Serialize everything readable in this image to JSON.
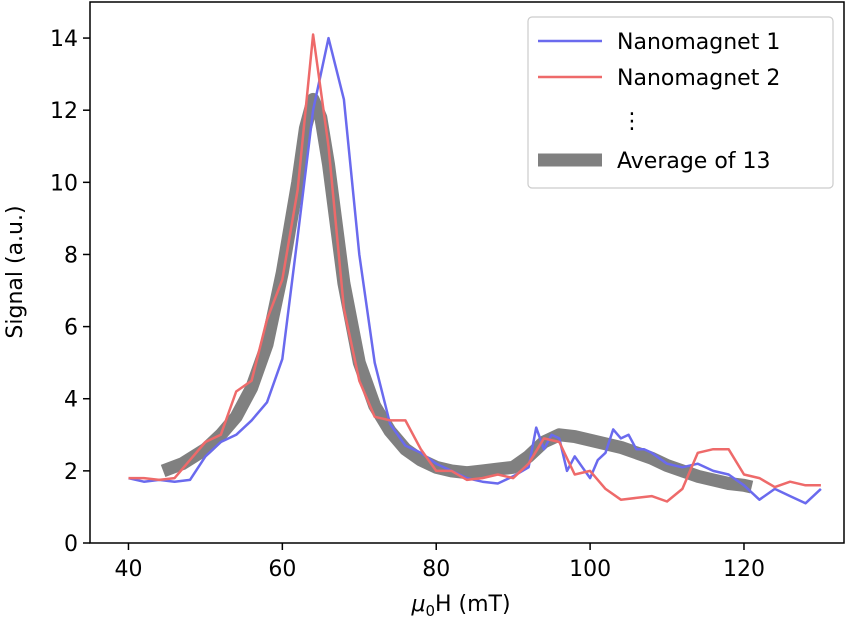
{
  "chart_data": {
    "type": "line",
    "xlabel_symbol": "μ",
    "xlabel_sub": "0",
    "xlabel_rest": "H (mT)",
    "ylabel": "Signal (a.u.)",
    "xlim": [
      35,
      133
    ],
    "ylim": [
      0,
      15
    ],
    "xticks": [
      40,
      60,
      80,
      100,
      120
    ],
    "yticks": [
      0,
      2,
      4,
      6,
      8,
      10,
      12,
      14
    ],
    "grid": false,
    "legend_position": "top-right",
    "legend_ellipsis": "⋮",
    "series": [
      {
        "name": "Nanomagnet 1",
        "color": "#6a6aee",
        "alpha": 1,
        "width": 2.5,
        "x": [
          40,
          42,
          44,
          46,
          48,
          50,
          52,
          54,
          56,
          58,
          60,
          62,
          64,
          66,
          68,
          70,
          72,
          74,
          76,
          78,
          80,
          82,
          84,
          86,
          88,
          90,
          92,
          93,
          94,
          95,
          96,
          97,
          98,
          99,
          100,
          101,
          102,
          103,
          104,
          105,
          106,
          107,
          108,
          110,
          112,
          114,
          116,
          118,
          120,
          122,
          124,
          126,
          128,
          130
        ],
        "y": [
          1.8,
          1.7,
          1.75,
          1.7,
          1.75,
          2.4,
          2.8,
          3.0,
          3.4,
          3.9,
          5.1,
          8.5,
          12.0,
          14.0,
          12.3,
          8.0,
          5.0,
          3.3,
          2.7,
          2.5,
          2.2,
          2.0,
          1.8,
          1.7,
          1.65,
          1.85,
          2.1,
          3.2,
          2.6,
          3.0,
          2.9,
          2.0,
          2.4,
          2.1,
          1.8,
          2.3,
          2.5,
          3.15,
          2.9,
          3.0,
          2.6,
          2.6,
          2.5,
          2.2,
          2.1,
          2.2,
          2.0,
          1.9,
          1.6,
          1.2,
          1.5,
          1.3,
          1.1,
          1.5
        ]
      },
      {
        "name": "Nanomagnet 2",
        "color": "#ee6a6a",
        "alpha": 1,
        "width": 2.5,
        "x": [
          40,
          42,
          44,
          46,
          48,
          50,
          52,
          54,
          56,
          58,
          60,
          62,
          64,
          66,
          68,
          70,
          72,
          74,
          76,
          78,
          80,
          82,
          84,
          86,
          88,
          90,
          92,
          94,
          96,
          98,
          100,
          102,
          104,
          106,
          108,
          110,
          112,
          114,
          116,
          118,
          120,
          122,
          124,
          126,
          128,
          130
        ],
        "y": [
          1.8,
          1.8,
          1.75,
          1.8,
          2.3,
          2.8,
          3.0,
          4.2,
          4.5,
          6.2,
          7.3,
          9.8,
          14.1,
          11.0,
          6.5,
          4.5,
          3.5,
          3.4,
          3.4,
          2.6,
          2.0,
          2.0,
          1.75,
          1.8,
          1.9,
          1.8,
          2.2,
          2.9,
          2.8,
          1.9,
          2.0,
          1.5,
          1.2,
          1.25,
          1.3,
          1.15,
          1.5,
          2.5,
          2.6,
          2.6,
          1.9,
          1.8,
          1.55,
          1.7,
          1.6,
          1.6
        ]
      },
      {
        "name": "Average of 13",
        "color": "#555555",
        "alpha": 0.75,
        "width": 13,
        "x": [
          44.5,
          47,
          50,
          52,
          54,
          56,
          58,
          60,
          62,
          63,
          64,
          65,
          66,
          68,
          70,
          72,
          74,
          76,
          78,
          80,
          82,
          84,
          86,
          88,
          90,
          92,
          94,
          96,
          98,
          100,
          102,
          104,
          106,
          108,
          110,
          112,
          114,
          116,
          118,
          120,
          121
        ],
        "y": [
          2.0,
          2.2,
          2.6,
          3.0,
          3.5,
          4.3,
          5.5,
          7.5,
          10.0,
          11.5,
          12.3,
          11.8,
          10.5,
          7.2,
          5.0,
          3.8,
          3.1,
          2.6,
          2.3,
          2.1,
          2.0,
          1.95,
          2.0,
          2.05,
          2.1,
          2.4,
          2.8,
          3.0,
          2.95,
          2.85,
          2.75,
          2.65,
          2.5,
          2.35,
          2.15,
          2.0,
          1.85,
          1.75,
          1.65,
          1.6,
          1.55
        ]
      }
    ]
  }
}
